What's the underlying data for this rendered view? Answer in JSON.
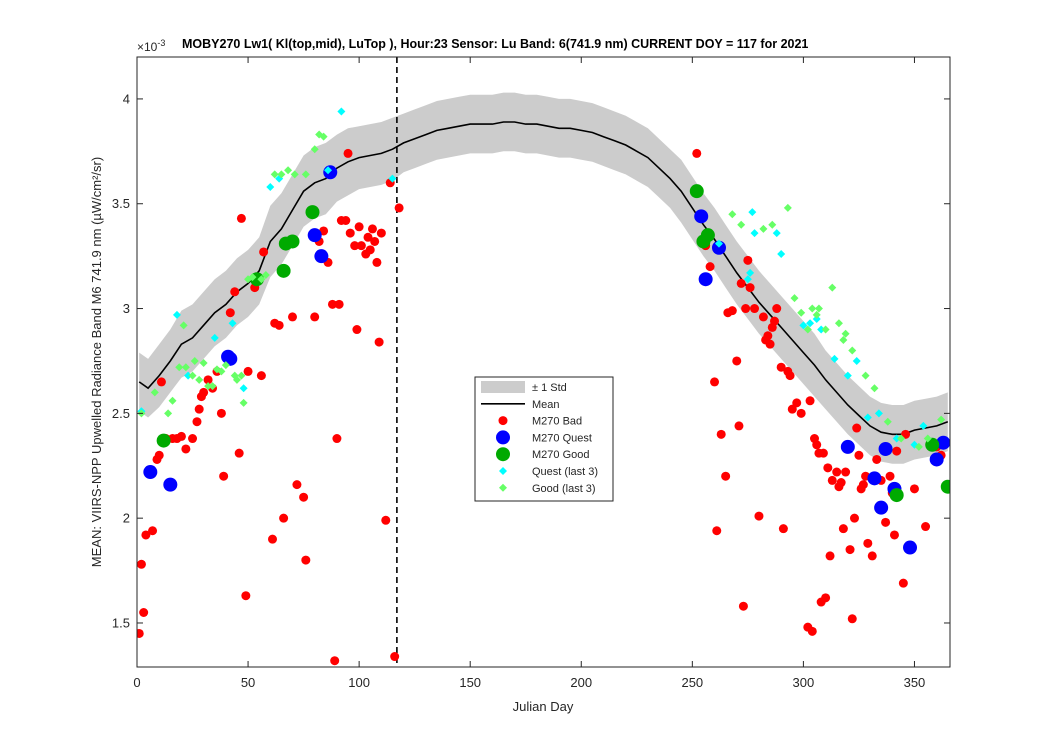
{
  "chart_data": {
    "type": "scatter",
    "title": "MOBY270   Lw1( Kl(top,mid), LuTop ),   Hour:23 Sensor: Lu Band: 6(741.9 nm)   CURRENT DOY = 117 for 2021",
    "xlabel": "Julian Day",
    "ylabel": "MEAN: VIIRS-NPP Upwelled Radiance Band M6 741.9 nm (µW/cm²/sr)",
    "y_exponent_label": "×10",
    "y_exponent": "-3",
    "xlim": [
      0,
      366
    ],
    "ylim": [
      1.29,
      4.2
    ],
    "x_ticks": [
      0,
      50,
      100,
      150,
      200,
      250,
      300,
      350
    ],
    "y_ticks": [
      1.5,
      2,
      2.5,
      3,
      3.5,
      4
    ],
    "y_tick_labels": [
      "1.5",
      "2",
      "2.5",
      "3",
      "3.5",
      "4"
    ],
    "y_units_scale": "1e-3",
    "current_doy": 117,
    "grid": false,
    "legend_position": "center",
    "legend": [
      "± 1 Std",
      "Mean",
      "M270 Bad",
      "M270 Quest",
      "M270 Good",
      "Quest (last 3)",
      "Good (last 3)"
    ],
    "colors": {
      "std_band": "#cccccc",
      "mean": "#000000",
      "bad": "#ff0000",
      "quest": "#0000ff",
      "good": "#00aa00",
      "quest_last3": "#00ffff",
      "good_last3": "#66ff66"
    },
    "mean_series": {
      "x": [
        1,
        5,
        10,
        15,
        20,
        25,
        30,
        35,
        40,
        45,
        50,
        55,
        60,
        65,
        70,
        75,
        80,
        85,
        90,
        95,
        100,
        105,
        110,
        115,
        120,
        125,
        130,
        135,
        140,
        145,
        150,
        155,
        160,
        165,
        170,
        175,
        180,
        185,
        190,
        195,
        200,
        205,
        210,
        215,
        220,
        225,
        230,
        235,
        240,
        245,
        250,
        255,
        260,
        265,
        270,
        275,
        280,
        285,
        290,
        295,
        300,
        305,
        310,
        315,
        320,
        325,
        330,
        335,
        340,
        345,
        350,
        355,
        360,
        365
      ],
      "mean": [
        2.65,
        2.62,
        2.68,
        2.75,
        2.83,
        2.86,
        2.92,
        2.98,
        3.02,
        3.08,
        3.12,
        3.18,
        3.32,
        3.38,
        3.47,
        3.56,
        3.6,
        3.62,
        3.67,
        3.7,
        3.72,
        3.73,
        3.74,
        3.76,
        3.79,
        3.81,
        3.83,
        3.85,
        3.86,
        3.87,
        3.88,
        3.88,
        3.88,
        3.89,
        3.89,
        3.88,
        3.88,
        3.87,
        3.86,
        3.86,
        3.85,
        3.84,
        3.82,
        3.8,
        3.78,
        3.75,
        3.72,
        3.67,
        3.62,
        3.56,
        3.48,
        3.4,
        3.33,
        3.25,
        3.17,
        3.1,
        3.03,
        2.97,
        2.91,
        2.85,
        2.79,
        2.73,
        2.66,
        2.6,
        2.54,
        2.49,
        2.44,
        2.41,
        2.4,
        2.4,
        2.42,
        2.43,
        2.44,
        2.46
      ],
      "std": [
        0.14,
        0.14,
        0.15,
        0.15,
        0.16,
        0.16,
        0.16,
        0.16,
        0.16,
        0.16,
        0.16,
        0.16,
        0.17,
        0.17,
        0.17,
        0.17,
        0.17,
        0.17,
        0.16,
        0.16,
        0.15,
        0.15,
        0.15,
        0.15,
        0.14,
        0.14,
        0.14,
        0.14,
        0.14,
        0.14,
        0.14,
        0.14,
        0.14,
        0.14,
        0.14,
        0.14,
        0.14,
        0.14,
        0.14,
        0.14,
        0.14,
        0.14,
        0.14,
        0.14,
        0.14,
        0.14,
        0.14,
        0.14,
        0.14,
        0.15,
        0.15,
        0.15,
        0.15,
        0.15,
        0.15,
        0.15,
        0.15,
        0.15,
        0.15,
        0.15,
        0.15,
        0.15,
        0.14,
        0.14,
        0.14,
        0.14,
        0.14,
        0.14,
        0.14,
        0.14,
        0.14,
        0.14,
        0.14,
        0.14
      ]
    },
    "series": [
      {
        "name": "M270 Bad",
        "marker": "dot",
        "points": [
          [
            1,
            1.45
          ],
          [
            2,
            1.78
          ],
          [
            3,
            1.55
          ],
          [
            4,
            1.92
          ],
          [
            7,
            1.94
          ],
          [
            9,
            2.28
          ],
          [
            10,
            2.3
          ],
          [
            11,
            2.65
          ],
          [
            13,
            2.38
          ],
          [
            16,
            2.38
          ],
          [
            18,
            2.38
          ],
          [
            20,
            2.39
          ],
          [
            22,
            2.33
          ],
          [
            25,
            2.38
          ],
          [
            27,
            2.46
          ],
          [
            28,
            2.52
          ],
          [
            29,
            2.58
          ],
          [
            30,
            2.6
          ],
          [
            32,
            2.66
          ],
          [
            34,
            2.62
          ],
          [
            36,
            2.7
          ],
          [
            38,
            2.5
          ],
          [
            39,
            2.2
          ],
          [
            42,
            2.98
          ],
          [
            44,
            3.08
          ],
          [
            46,
            2.31
          ],
          [
            47,
            3.43
          ],
          [
            49,
            1.63
          ],
          [
            50,
            2.7
          ],
          [
            53,
            3.1
          ],
          [
            56,
            2.68
          ],
          [
            57,
            3.27
          ],
          [
            61,
            1.9
          ],
          [
            62,
            2.93
          ],
          [
            64,
            2.92
          ],
          [
            66,
            2.0
          ],
          [
            70,
            2.96
          ],
          [
            72,
            2.16
          ],
          [
            75,
            2.1
          ],
          [
            76,
            1.8
          ],
          [
            80,
            2.96
          ],
          [
            82,
            3.32
          ],
          [
            84,
            3.37
          ],
          [
            86,
            3.22
          ],
          [
            88,
            3.02
          ],
          [
            89,
            1.32
          ],
          [
            90,
            2.38
          ],
          [
            91,
            3.02
          ],
          [
            92,
            3.42
          ],
          [
            94,
            3.42
          ],
          [
            95,
            3.74
          ],
          [
            96,
            3.36
          ],
          [
            98,
            3.3
          ],
          [
            99,
            2.9
          ],
          [
            100,
            3.39
          ],
          [
            101,
            3.3
          ],
          [
            103,
            3.26
          ],
          [
            104,
            3.34
          ],
          [
            105,
            3.28
          ],
          [
            106,
            3.38
          ],
          [
            107,
            3.32
          ],
          [
            108,
            3.22
          ],
          [
            109,
            2.84
          ],
          [
            110,
            3.36
          ],
          [
            112,
            1.99
          ],
          [
            114,
            3.6
          ],
          [
            116,
            1.34
          ],
          [
            118,
            3.48
          ],
          [
            252,
            3.74
          ],
          [
            256,
            3.3
          ],
          [
            258,
            3.2
          ],
          [
            260,
            2.65
          ],
          [
            261,
            1.94
          ],
          [
            263,
            2.4
          ],
          [
            265,
            2.2
          ],
          [
            266,
            2.98
          ],
          [
            268,
            2.99
          ],
          [
            270,
            2.75
          ],
          [
            271,
            2.44
          ],
          [
            272,
            3.12
          ],
          [
            273,
            1.58
          ],
          [
            274,
            3.0
          ],
          [
            275,
            3.23
          ],
          [
            276,
            3.1
          ],
          [
            278,
            3.0
          ],
          [
            280,
            2.01
          ],
          [
            282,
            2.96
          ],
          [
            283,
            2.85
          ],
          [
            284,
            2.87
          ],
          [
            285,
            2.83
          ],
          [
            286,
            2.91
          ],
          [
            287,
            2.94
          ],
          [
            288,
            3.0
          ],
          [
            290,
            2.72
          ],
          [
            291,
            1.95
          ],
          [
            293,
            2.7
          ],
          [
            294,
            2.68
          ],
          [
            295,
            2.52
          ],
          [
            297,
            2.55
          ],
          [
            299,
            2.5
          ],
          [
            302,
            1.48
          ],
          [
            303,
            2.56
          ],
          [
            304,
            1.46
          ],
          [
            305,
            2.38
          ],
          [
            306,
            2.35
          ],
          [
            307,
            2.31
          ],
          [
            308,
            1.6
          ],
          [
            309,
            2.31
          ],
          [
            310,
            1.62
          ],
          [
            311,
            2.24
          ],
          [
            312,
            1.82
          ],
          [
            313,
            2.18
          ],
          [
            315,
            2.22
          ],
          [
            316,
            2.15
          ],
          [
            317,
            2.17
          ],
          [
            318,
            1.95
          ],
          [
            319,
            2.22
          ],
          [
            321,
            1.85
          ],
          [
            322,
            1.52
          ],
          [
            323,
            2.0
          ],
          [
            324,
            2.43
          ],
          [
            325,
            2.3
          ],
          [
            326,
            2.14
          ],
          [
            327,
            2.16
          ],
          [
            328,
            2.2
          ],
          [
            329,
            1.88
          ],
          [
            331,
            1.82
          ],
          [
            333,
            2.28
          ],
          [
            335,
            2.18
          ],
          [
            337,
            1.98
          ],
          [
            339,
            2.2
          ],
          [
            340,
            2.12
          ],
          [
            341,
            1.92
          ],
          [
            342,
            2.32
          ],
          [
            345,
            1.69
          ],
          [
            346,
            2.4
          ],
          [
            350,
            2.14
          ],
          [
            355,
            1.96
          ],
          [
            360,
            2.34
          ],
          [
            362,
            2.3
          ]
        ]
      },
      {
        "name": "M270 Quest",
        "marker": "dot",
        "points": [
          [
            6,
            2.22
          ],
          [
            15,
            2.16
          ],
          [
            41,
            2.77
          ],
          [
            42,
            2.76
          ],
          [
            80,
            3.35
          ],
          [
            83,
            3.25
          ],
          [
            87,
            3.65
          ],
          [
            254,
            3.44
          ],
          [
            256,
            3.14
          ],
          [
            262,
            3.29
          ],
          [
            320,
            2.34
          ],
          [
            332,
            2.19
          ],
          [
            335,
            2.05
          ],
          [
            337,
            2.33
          ],
          [
            341,
            2.14
          ],
          [
            348,
            1.86
          ],
          [
            360,
            2.28
          ],
          [
            363,
            2.36
          ]
        ]
      },
      {
        "name": "M270 Good",
        "marker": "dot",
        "points": [
          [
            12,
            2.37
          ],
          [
            54,
            3.14
          ],
          [
            66,
            3.18
          ],
          [
            67,
            3.31
          ],
          [
            70,
            3.32
          ],
          [
            79,
            3.46
          ],
          [
            252,
            3.56
          ],
          [
            255,
            3.32
          ],
          [
            257,
            3.35
          ],
          [
            342,
            2.11
          ],
          [
            358,
            2.35
          ],
          [
            365,
            2.15
          ]
        ]
      },
      {
        "name": "Quest (last 3)",
        "marker": "diamond",
        "points": [
          [
            2,
            2.51
          ],
          [
            18,
            2.97
          ],
          [
            23,
            2.68
          ],
          [
            35,
            2.86
          ],
          [
            43,
            2.93
          ],
          [
            48,
            2.62
          ],
          [
            60,
            3.58
          ],
          [
            64,
            3.62
          ],
          [
            86,
            3.66
          ],
          [
            92,
            3.94
          ],
          [
            115,
            3.62
          ],
          [
            262,
            3.31
          ],
          [
            275,
            3.14
          ],
          [
            276,
            3.17
          ],
          [
            277,
            3.46
          ],
          [
            278,
            3.36
          ],
          [
            288,
            3.36
          ],
          [
            290,
            3.26
          ],
          [
            300,
            2.92
          ],
          [
            303,
            2.93
          ],
          [
            306,
            2.95
          ],
          [
            308,
            2.9
          ],
          [
            314,
            2.76
          ],
          [
            320,
            2.68
          ],
          [
            324,
            2.75
          ],
          [
            329,
            2.48
          ],
          [
            334,
            2.5
          ],
          [
            342,
            2.38
          ],
          [
            350,
            2.35
          ],
          [
            354,
            2.44
          ]
        ]
      },
      {
        "name": "Good (last 3)",
        "marker": "diamond",
        "points": [
          [
            2,
            2.5
          ],
          [
            8,
            2.6
          ],
          [
            14,
            2.5
          ],
          [
            16,
            2.56
          ],
          [
            19,
            2.72
          ],
          [
            21,
            2.92
          ],
          [
            22,
            2.72
          ],
          [
            25,
            2.68
          ],
          [
            26,
            2.75
          ],
          [
            28,
            2.66
          ],
          [
            30,
            2.74
          ],
          [
            32,
            2.63
          ],
          [
            34,
            2.63
          ],
          [
            36,
            2.71
          ],
          [
            38,
            2.7
          ],
          [
            40,
            2.73
          ],
          [
            44,
            2.68
          ],
          [
            45,
            2.66
          ],
          [
            47,
            2.68
          ],
          [
            48,
            2.55
          ],
          [
            50,
            3.14
          ],
          [
            52,
            3.15
          ],
          [
            56,
            3.14
          ],
          [
            58,
            3.16
          ],
          [
            62,
            3.64
          ],
          [
            65,
            3.64
          ],
          [
            68,
            3.66
          ],
          [
            71,
            3.64
          ],
          [
            76,
            3.64
          ],
          [
            80,
            3.76
          ],
          [
            82,
            3.83
          ],
          [
            84,
            3.82
          ],
          [
            268,
            3.45
          ],
          [
            272,
            3.4
          ],
          [
            282,
            3.38
          ],
          [
            286,
            3.4
          ],
          [
            293,
            3.48
          ],
          [
            296,
            3.05
          ],
          [
            299,
            2.98
          ],
          [
            302,
            2.9
          ],
          [
            304,
            3.0
          ],
          [
            306,
            2.97
          ],
          [
            307,
            3.0
          ],
          [
            310,
            2.9
          ],
          [
            313,
            3.1
          ],
          [
            316,
            2.93
          ],
          [
            318,
            2.85
          ],
          [
            319,
            2.88
          ],
          [
            322,
            2.8
          ],
          [
            328,
            2.68
          ],
          [
            332,
            2.62
          ],
          [
            338,
            2.46
          ],
          [
            344,
            2.38
          ],
          [
            352,
            2.34
          ],
          [
            356,
            2.38
          ],
          [
            362,
            2.47
          ]
        ]
      }
    ]
  }
}
